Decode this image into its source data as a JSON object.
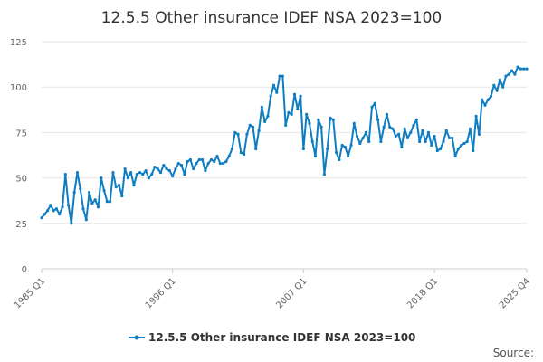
{
  "colors": {
    "series": "#0f7dc2",
    "grid": "#e6e6e6",
    "axis": "#cccccc",
    "text": "#333333"
  },
  "chart_data": {
    "type": "line",
    "title": "12.5.5 Other insurance IDEF NSA 2023=100",
    "xlabel": "",
    "ylabel": "",
    "ylim": [
      0,
      125
    ],
    "yticks": [
      0,
      25,
      50,
      75,
      100,
      125
    ],
    "ytick_labels": [
      "0",
      "25",
      "50",
      "75",
      "100",
      "125"
    ],
    "xticks": [
      {
        "index": 0,
        "label": "1985 Q1"
      },
      {
        "index": 44,
        "label": "1996 Q1"
      },
      {
        "index": 88,
        "label": "2007 Q1"
      },
      {
        "index": 132,
        "label": "2018 Q1"
      },
      {
        "index": 163,
        "label": "2025 Q4"
      }
    ],
    "legend": "bottom-center",
    "source_label": "Source:",
    "series": [
      {
        "name": "12.5.5 Other insurance IDEF NSA 2023=100",
        "values": [
          28,
          30,
          32,
          35,
          32,
          33,
          30,
          34,
          52,
          35,
          25,
          42,
          53,
          44,
          33,
          27,
          42,
          36,
          38,
          34,
          50,
          43,
          37,
          37,
          53,
          45,
          46,
          40,
          55,
          50,
          53,
          46,
          52,
          53,
          52,
          54,
          50,
          52,
          56,
          55,
          53,
          57,
          55,
          54,
          51,
          55,
          58,
          57,
          52,
          59,
          60,
          55,
          58,
          60,
          60,
          54,
          58,
          60,
          59,
          62,
          58,
          58,
          59,
          62,
          66,
          75,
          74,
          64,
          63,
          74,
          79,
          78,
          66,
          76,
          89,
          81,
          84,
          95,
          101,
          97,
          106,
          106,
          79,
          86,
          85,
          96,
          88,
          95,
          66,
          85,
          80,
          70,
          62,
          82,
          78,
          52,
          66,
          83,
          82,
          64,
          60,
          68,
          67,
          62,
          68,
          80,
          73,
          69,
          72,
          75,
          70,
          89,
          91,
          82,
          70,
          78,
          85,
          78,
          77,
          73,
          74,
          67,
          77,
          72,
          75,
          79,
          82,
          70,
          76,
          70,
          75,
          68,
          73,
          65,
          66,
          70,
          76,
          72,
          72,
          62,
          66,
          68,
          69,
          70,
          77,
          65,
          84,
          74,
          93,
          90,
          93,
          95,
          101,
          98,
          104,
          100,
          106,
          107,
          109,
          107,
          111,
          110,
          110,
          110
        ]
      }
    ]
  }
}
